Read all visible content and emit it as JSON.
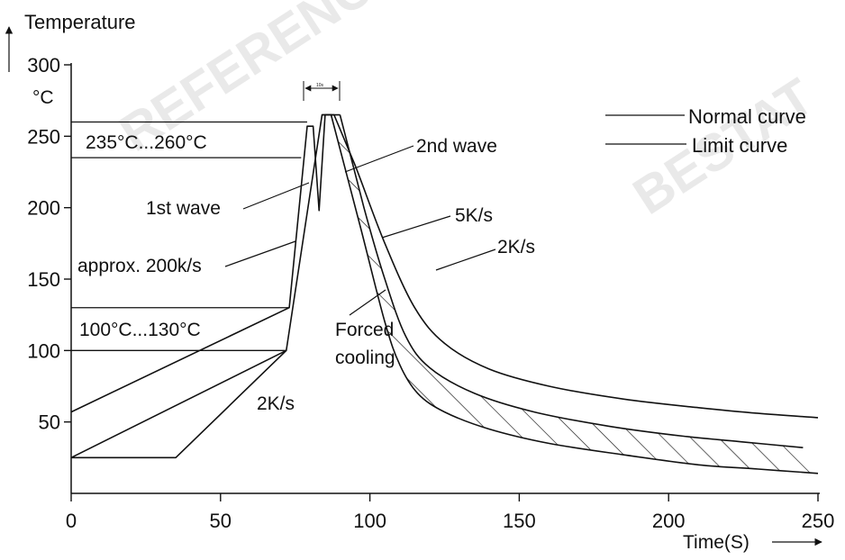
{
  "watermarks": [
    {
      "text": "REFERENCE"
    },
    {
      "text": "BESTAT"
    }
  ],
  "chart_data": {
    "type": "line",
    "title": "",
    "xlabel": "Time(S)",
    "ylabel": "Temperature",
    "y_unit": "°C",
    "xlim": [
      0,
      250
    ],
    "ylim": [
      0,
      300
    ],
    "grid": false,
    "legend_position": "top-right",
    "x_ticks": [
      {
        "value": 0,
        "label": "0"
      },
      {
        "value": 50,
        "label": "50"
      },
      {
        "value": 100,
        "label": "100"
      },
      {
        "value": 150,
        "label": "150"
      },
      {
        "value": 200,
        "label": "200"
      },
      {
        "value": 250,
        "label": "250"
      }
    ],
    "y_ticks": [
      {
        "value": 50,
        "label": "50"
      },
      {
        "value": 100,
        "label": "100"
      },
      {
        "value": 150,
        "label": "150"
      },
      {
        "value": 200,
        "label": "200"
      },
      {
        "value": 250,
        "label": "250"
      },
      {
        "value": 300,
        "label": "300"
      }
    ],
    "series": [
      {
        "name": "Normal curve",
        "x": [
          0,
          73,
          79,
          81,
          83,
          85,
          88,
          95,
          105,
          115,
          125,
          140,
          160,
          185,
          210,
          230,
          250
        ],
        "y": [
          57,
          130,
          257,
          257,
          198,
          265,
          265,
          230,
          175,
          130,
          105,
          87,
          75,
          66,
          60,
          56,
          53
        ]
      },
      {
        "name": "Limit curve",
        "x": [
          0,
          35,
          72,
          84,
          87,
          97,
          105,
          110,
          116,
          125,
          140,
          160,
          185,
          210,
          230,
          250
        ],
        "y": [
          25,
          25,
          100,
          265,
          265,
          185,
          120,
          90,
          70,
          57,
          45,
          35,
          27,
          20,
          17,
          14
        ]
      },
      {
        "name": "",
        "x": [
          0,
          72
        ],
        "y": [
          25,
          100
        ]
      },
      {
        "name": "",
        "x": [
          90,
          98,
          105,
          112,
          120,
          135,
          155,
          180,
          205,
          225,
          245
        ],
        "y": [
          265,
          200,
          150,
          110,
          88,
          70,
          57,
          47,
          40,
          36,
          32
        ]
      }
    ],
    "regions": [
      {
        "label": "235°C...260°C",
        "y_from": 235,
        "y_to": 260
      },
      {
        "label": "100°C...130°C",
        "y_from": 100,
        "y_to": 130
      }
    ],
    "annotations": [
      {
        "text": "1st wave"
      },
      {
        "text": "2nd wave"
      },
      {
        "text": "approx. 200k/s"
      },
      {
        "text": "Forced"
      },
      {
        "text": "cooling"
      },
      {
        "text": "5K/s"
      },
      {
        "text": "2K/s"
      },
      {
        "text": "2K/s"
      },
      {
        "text": "10s"
      }
    ]
  }
}
